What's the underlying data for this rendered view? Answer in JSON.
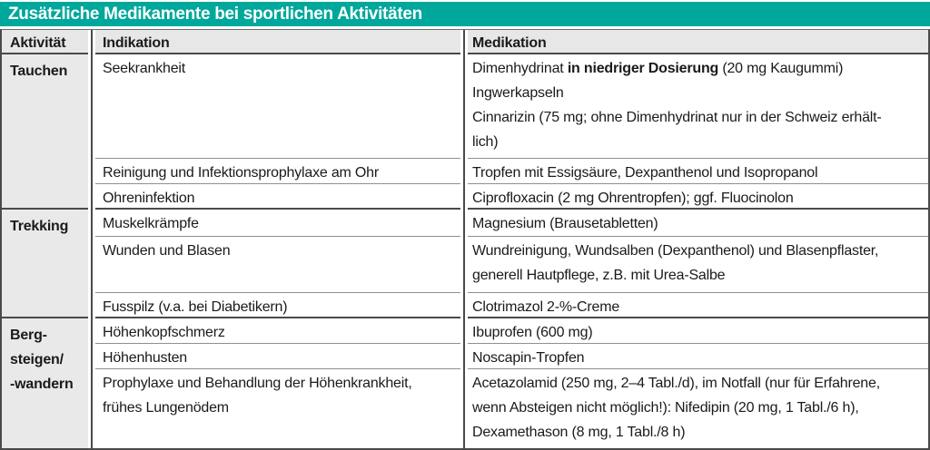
{
  "title": "Zusätzliche Medikamente bei sportlichen Aktivitäten",
  "columns": {
    "activity": "Aktivität",
    "indication": "Indikation",
    "medication": "Medikation"
  },
  "colors": {
    "accent_teal": "#00a79b",
    "header_gray": "#e7e7e7",
    "activity_gray": "#e9e9e9",
    "dark_border": "#4a4a4a",
    "light_border": "#8f8f8f",
    "text": "#1a1a1a",
    "title_text": "#ffffff"
  },
  "sections": [
    {
      "activity": "Tauchen",
      "rows": [
        {
          "indication": "Seekrankheit",
          "medication_prefix": "Dimenhydrinat ",
          "medication_bold": "in niedriger Dosierung",
          "medication_suffix": " (20 mg Kaugummi)\nIngwerkapseln\nCinnarizin (75 mg; ohne Dimenhydrinat nur in der Schweiz erhält-\nlich)"
        },
        {
          "indication": "Reinigung und Infektionsprophylaxe am Ohr",
          "medication": "Tropfen mit Essigsäure, Dexpanthenol und Isopropanol"
        },
        {
          "indication": "Ohreninfektion",
          "medication": "Ciprofloxacin (2 mg Ohrentropfen); ggf. Fluocinolon"
        }
      ]
    },
    {
      "activity": "Trekking",
      "rows": [
        {
          "indication": "Muskelkrämpfe",
          "medication": "Magnesium (Brausetabletten)"
        },
        {
          "indication": "Wunden und Blasen",
          "medication": "Wundreinigung, Wundsalben (Dexpanthenol) und Blasenpflaster,\ngenerell Hautpflege, z.B. mit Urea-Salbe"
        },
        {
          "indication": "Fusspilz (v.a. bei Diabetikern)",
          "medication": "Clotrimazol 2-%-Creme"
        }
      ]
    },
    {
      "activity": "Berg-\nsteigen/\n-wandern",
      "rows": [
        {
          "indication": "Höhenkopfschmerz",
          "medication": "Ibuprofen (600 mg)"
        },
        {
          "indication": "Höhenhusten",
          "medication": "Noscapin-Tropfen"
        },
        {
          "indication": "Prophylaxe und Behandlung der Höhenkrankheit,\nfrühes Lungenödem",
          "medication": "Acetazolamid (250 mg, 2–4 Tabl./d), im Notfall (nur für Erfahrene,\nwenn Absteigen nicht möglich!): Nifedipin (20 mg, 1 Tabl./6 h),\nDexamethason (8 mg, 1 Tabl./8 h)"
        }
      ]
    }
  ]
}
